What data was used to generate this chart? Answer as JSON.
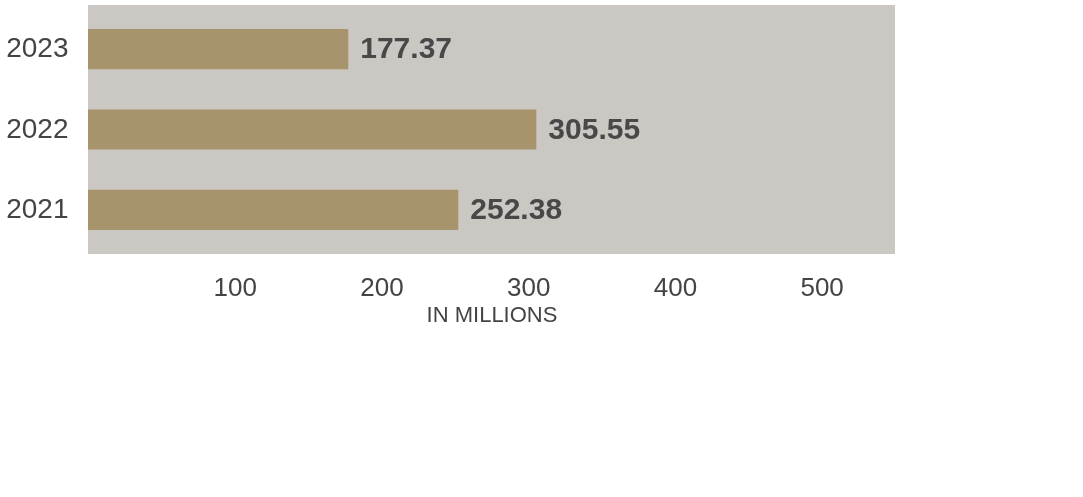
{
  "chart_data": {
    "type": "bar",
    "orientation": "horizontal",
    "categories": [
      "2023",
      "2022",
      "2021"
    ],
    "values": [
      177.37,
      305.55,
      252.38
    ],
    "color": "#a8946c",
    "data_labels": true,
    "xlabel": "IN MILLIONS",
    "xlim": [
      0,
      550
    ],
    "xticks": [
      100,
      200,
      300,
      400,
      500
    ],
    "grid": false
  }
}
